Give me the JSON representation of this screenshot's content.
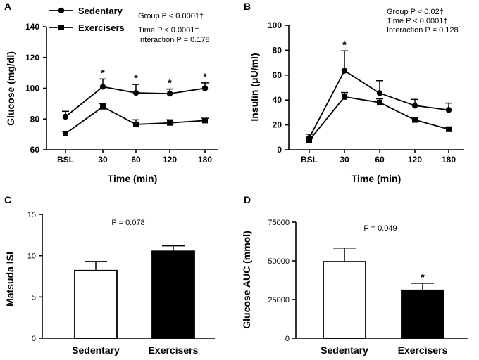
{
  "chart_data": [
    {
      "panel": "A",
      "type": "line",
      "categories": [
        "BSL",
        "30",
        "60",
        "120",
        "180"
      ],
      "series": [
        {
          "name": "Sedentary",
          "marker": "circle",
          "values": [
            81.5,
            101,
            97,
            96.5,
            100
          ],
          "errors": [
            3.5,
            5,
            5.5,
            3,
            3.5
          ]
        },
        {
          "name": "Exercisers",
          "marker": "square",
          "values": [
            70.5,
            88,
            76.5,
            77.5,
            79
          ],
          "errors": [
            1.5,
            2,
            3,
            2,
            1.5
          ]
        }
      ],
      "annotations": [
        "*",
        "*",
        "*",
        "*"
      ],
      "stats": {
        "line1": "Group P < 0.0001†",
        "line2": "Time P < 0.0001†",
        "line3": "Interaction P = 0.178"
      },
      "ylabel": "Glucose (mg/dl)",
      "xlabel": "Time (min)",
      "ylim": [
        60,
        140
      ],
      "yticks": [
        "60",
        "80",
        "100",
        "120",
        "140"
      ]
    },
    {
      "panel": "B",
      "type": "line",
      "categories": [
        "BSL",
        "30",
        "60",
        "120",
        "180"
      ],
      "series": [
        {
          "name": "Sedentary",
          "marker": "circle",
          "values": [
            9.5,
            63.5,
            45.5,
            35.5,
            32
          ],
          "errors": [
            3,
            16,
            10,
            5,
            5.5
          ]
        },
        {
          "name": "Exercisers",
          "marker": "square",
          "values": [
            7.5,
            42.5,
            38,
            24,
            16.5
          ],
          "errors": [
            2,
            3.5,
            3,
            2,
            1.5
          ]
        }
      ],
      "annotations": [
        "*"
      ],
      "stats": {
        "line1": "Group P < 0.02†",
        "line2": "Time P < 0.0001†",
        "line3": "Interaction P = 0.128"
      },
      "ylabel": "Insulin (μU/ml)",
      "xlabel": "Time (min)",
      "ylim": [
        0,
        100
      ],
      "yticks": [
        "0",
        "20",
        "40",
        "60",
        "80",
        "100"
      ]
    },
    {
      "panel": "C",
      "type": "bar",
      "categories": [
        "Sedentary",
        "Exercisers"
      ],
      "values": [
        8.2,
        10.55
      ],
      "errors": [
        1.1,
        0.65
      ],
      "fills": [
        "#ffffff",
        "#000000"
      ],
      "p_text": "P = 0.078",
      "ylabel": "Matsuda ISI",
      "ylim": [
        0,
        15
      ],
      "yticks": [
        "0",
        "5",
        "10",
        "15"
      ]
    },
    {
      "panel": "D",
      "type": "bar",
      "categories": [
        "Sedentary",
        "Exercisers"
      ],
      "values": [
        49500,
        31000
      ],
      "errors": [
        8800,
        4500
      ],
      "fills": [
        "#ffffff",
        "#000000"
      ],
      "p_text": "P = 0.049",
      "annotations": [
        "*"
      ],
      "ylabel": "Glucose AUC (mmol)",
      "ylim": [
        0,
        75000
      ],
      "yticks": [
        "0",
        "25000",
        "50000",
        "75000"
      ]
    }
  ],
  "legend": {
    "sedentary": "Sedentary",
    "exercisers": "Exercisers"
  },
  "colors": {
    "ink": "#000000",
    "background": "#ffffff"
  }
}
